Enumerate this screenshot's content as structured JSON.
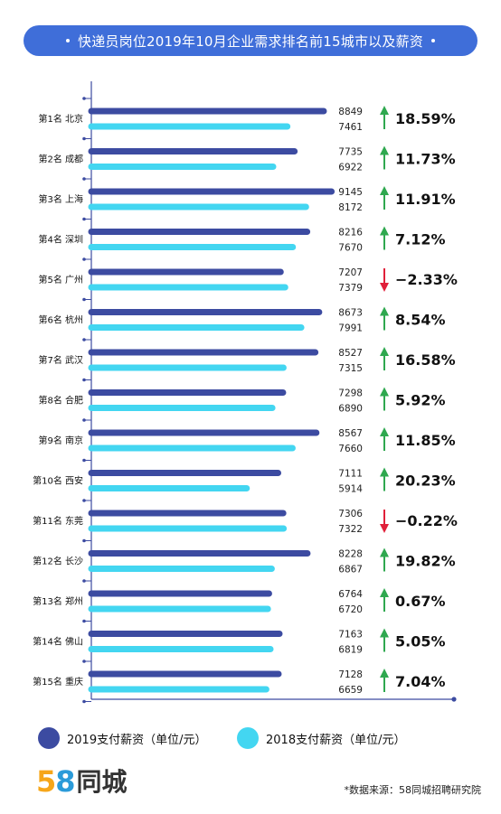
{
  "title": "快递员岗位2019年10月企业需求排名前15城市以及薪资",
  "legend": {
    "s2019": "2019支付薪资（单位/元）",
    "s2018": "2018支付薪资（单位/元）"
  },
  "colors": {
    "s2019": "#3c4ba1",
    "s2018": "#43d6f1",
    "up": "#2fa84f",
    "down": "#e0203a",
    "axis": "#3c4ba1"
  },
  "brand": {
    "num5": "5",
    "num8": "8",
    "name": "同城"
  },
  "source": "*数据来源：58同城招聘研究院",
  "chart_data": {
    "type": "bar",
    "orientation": "horizontal",
    "categories": [
      "第1名 北京",
      "第2名 成都",
      "第3名 上海",
      "第4名 深圳",
      "第5名 广州",
      "第6名 杭州",
      "第7名 武汉",
      "第8名 合肥",
      "第9名 南京",
      "第10名 西安",
      "第11名 东莞",
      "第12名 长沙",
      "第13名 郑州",
      "第14名 佛山",
      "第15名 重庆"
    ],
    "series": [
      {
        "name": "2019支付薪资（单位/元）",
        "values": [
          8849,
          7735,
          9145,
          8216,
          7207,
          8673,
          8527,
          7298,
          8567,
          7111,
          7306,
          8228,
          6764,
          7163,
          7128
        ]
      },
      {
        "name": "2018支付薪资（单位/元）",
        "values": [
          7461,
          6922,
          8172,
          7670,
          7379,
          7991,
          7315,
          6890,
          7660,
          5914,
          7322,
          6867,
          6720,
          6819,
          6659
        ]
      }
    ],
    "change": [
      "18.59%",
      "11.73%",
      "11.91%",
      "7.12%",
      "−2.33%",
      "8.54%",
      "16.58%",
      "5.92%",
      "11.85%",
      "20.23%",
      "−0.22%",
      "19.82%",
      "0.67%",
      "5.05%",
      "7.04%"
    ],
    "direction": [
      "up",
      "up",
      "up",
      "up",
      "down",
      "up",
      "up",
      "up",
      "up",
      "up",
      "down",
      "up",
      "up",
      "up",
      "up"
    ]
  }
}
